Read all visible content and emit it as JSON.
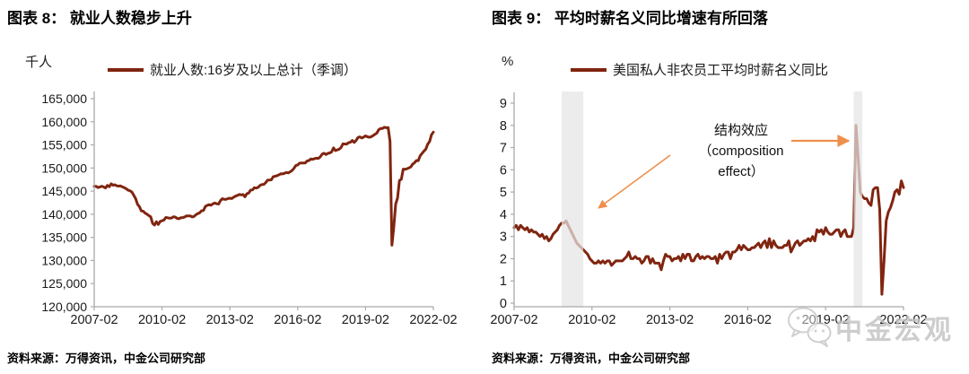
{
  "page": {
    "background": "#ffffff"
  },
  "source_note": "资料来源：万得资讯，中金公司研究部",
  "watermark": {
    "icon": "wechat-icon",
    "text": "中金宏观"
  },
  "chart_data": [
    {
      "type": "line",
      "panel": "left",
      "title": "图表 8： 就业人数稳步上升",
      "unit": "千人",
      "legend": "就业人数:16岁及以上总计（季调）",
      "line_color": "#802510",
      "axis_color": "#a9a9a9",
      "x_start": "2007-02",
      "x_end": "2022-02",
      "freq": "monthly",
      "x_ticks": [
        "2007-02",
        "2010-02",
        "2013-02",
        "2016-02",
        "2019-02",
        "2022-02"
      ],
      "ylim": [
        120000,
        165000
      ],
      "y_step": 5000,
      "y_tick_labels": [
        "165,000",
        "160,000",
        "155,000",
        "150,000",
        "145,000",
        "140,000",
        "135,000",
        "130,000",
        "125,000",
        "120,000"
      ],
      "grid": false,
      "legend_position": "top",
      "values": [
        146056,
        146057,
        145786,
        145903,
        146063,
        145905,
        145682,
        146244,
        145946,
        146595,
        146273,
        146378,
        146156,
        146086,
        146132,
        145908,
        145737,
        145532,
        145203,
        145076,
        144802,
        144100,
        143369,
        142152,
        141640,
        140707,
        140656,
        140248,
        140009,
        139700,
        139432,
        138013,
        137674,
        138381,
        137792,
        138451,
        138599,
        138752,
        139309,
        139247,
        139148,
        139179,
        139427,
        139393,
        139111,
        139030,
        139266,
        139287,
        139422,
        139655,
        139622,
        139653,
        139409,
        139524,
        139904,
        140154,
        140335,
        140747,
        140836,
        141677,
        141943,
        142079,
        141963,
        142257,
        142432,
        142272,
        142204,
        142947,
        143369,
        143233,
        143212,
        143384,
        143464,
        143393,
        143676,
        143919,
        144075,
        144285,
        144179,
        144270,
        143777,
        144443,
        144586,
        145224,
        145266,
        145742,
        145669,
        145814,
        146221,
        146438,
        146464,
        146834,
        147374,
        147389,
        147439,
        148104,
        148231,
        148333,
        148509,
        148748,
        148722,
        148866,
        149043,
        148942,
        149197,
        149444,
        149929,
        150533,
        150671,
        151059,
        151081,
        151068,
        151097,
        151517,
        151614,
        151968,
        151888,
        152048,
        152111,
        152076,
        152437,
        153004,
        153189,
        152924,
        153168,
        153259,
        153471,
        154345,
        153776,
        153918,
        154065,
        154430,
        155215,
        155178,
        155181,
        155474,
        155576,
        155962,
        155542,
        155962,
        156595,
        156733,
        156481,
        156694,
        156949,
        156748,
        156645,
        156758,
        157005,
        157288,
        157559,
        158298,
        158544,
        158536,
        158803,
        158714,
        158732,
        155772,
        133326,
        137242,
        142182,
        143532,
        147288,
        147563,
        149763,
        149732,
        149830,
        150031,
        150219,
        150848,
        151160,
        151620,
        151602,
        152645,
        153156,
        153680,
        154087,
        155175,
        155732,
        157174,
        157772
      ]
    },
    {
      "type": "line",
      "panel": "right",
      "title": "图表 9： 平均时薪名义同比增速有所回落",
      "unit": "%",
      "legend": "美国私人非农员工平均时薪名义同比",
      "line_color": "#802510",
      "axis_color": "#a9a9a9",
      "x_start": "2007-02",
      "x_end": "2022-02",
      "freq": "monthly",
      "x_ticks": [
        "2007-02",
        "2010-02",
        "2013-02",
        "2016-02",
        "2019-02",
        "2022-02"
      ],
      "ylim": [
        0,
        9
      ],
      "y_step": 1,
      "y_tick_labels": [
        "9",
        "8",
        "7",
        "6",
        "5",
        "4",
        "3",
        "2",
        "1",
        "0"
      ],
      "grid": false,
      "legend_position": "top",
      "shaded_bands": [
        {
          "from": "2008-12",
          "to": "2009-10",
          "color": "#e4e4e4"
        },
        {
          "from": "2020-03",
          "to": "2020-07",
          "color": "#e4e4e4"
        }
      ],
      "annotation": {
        "lines": [
          "结构效应",
          "（composition",
          "effect）"
        ],
        "arrow_color": "#ef8f4d"
      },
      "values": [
        3.4,
        3.5,
        3.3,
        3.5,
        3.4,
        3.3,
        3.4,
        3.2,
        3.3,
        3.2,
        3.2,
        3.1,
        3.0,
        3.1,
        2.9,
        3.0,
        2.8,
        2.9,
        3.1,
        3.2,
        3.3,
        3.5,
        3.6,
        3.6,
        3.7,
        3.5,
        3.3,
        3.1,
        2.9,
        2.7,
        2.6,
        2.5,
        2.4,
        2.3,
        2.2,
        2.0,
        1.9,
        1.8,
        1.8,
        1.9,
        1.8,
        1.9,
        1.8,
        1.9,
        1.9,
        1.7,
        1.8,
        1.9,
        1.9,
        1.9,
        1.9,
        2.0,
        2.1,
        2.3,
        2.0,
        2.0,
        2.1,
        2.0,
        2.0,
        1.8,
        1.9,
        2.1,
        2.1,
        1.8,
        2.0,
        1.8,
        1.8,
        1.8,
        1.5,
        1.9,
        2.2,
        2.1,
        2.1,
        1.9,
        2.0,
        2.0,
        2.1,
        1.9,
        2.2,
        2.0,
        2.2,
        2.2,
        1.9,
        1.9,
        2.1,
        2.2,
        2.0,
        2.1,
        2.0,
        2.1,
        2.1,
        2.0,
        2.0,
        2.1,
        1.8,
        2.2,
        2.0,
        2.2,
        2.3,
        2.3,
        2.0,
        2.3,
        2.3,
        2.4,
        2.6,
        2.4,
        2.6,
        2.5,
        2.4,
        2.4,
        2.5,
        2.5,
        2.6,
        2.7,
        2.5,
        2.7,
        2.8,
        2.5,
        2.9,
        2.5,
        2.8,
        2.6,
        2.5,
        2.5,
        2.5,
        2.6,
        2.6,
        2.8,
        2.3,
        2.5,
        2.7,
        2.8,
        2.6,
        2.7,
        2.8,
        2.8,
        2.9,
        2.8,
        3.0,
        2.8,
        3.3,
        3.2,
        3.3,
        3.1,
        3.4,
        3.2,
        3.1,
        3.1,
        3.2,
        3.3,
        3.3,
        3.0,
        3.2,
        3.3,
        3.0,
        3.0,
        3.0,
        3.4,
        8.0,
        6.6,
        5.0,
        4.8,
        4.7,
        4.7,
        4.5,
        4.4,
        5.1,
        5.2,
        5.2,
        4.2,
        0.4,
        1.9,
        3.7,
        4.1,
        4.3,
        4.6,
        5.0,
        5.1,
        4.9,
        5.5,
        5.2
      ]
    }
  ]
}
